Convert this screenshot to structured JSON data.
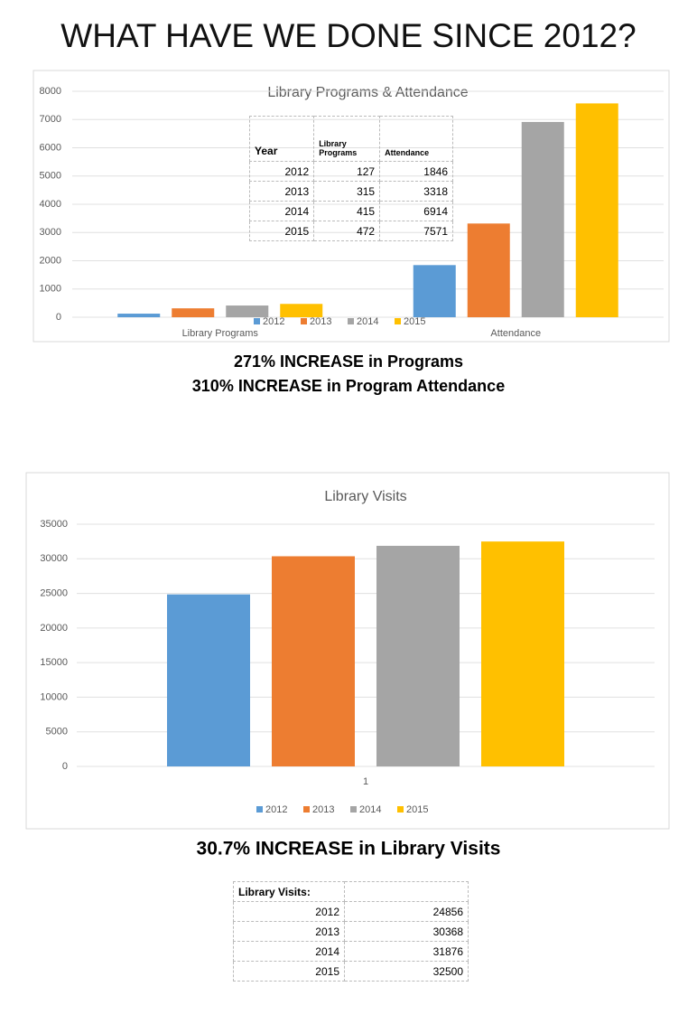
{
  "title": "WHAT HAVE WE DONE SINCE 2012?",
  "chart_data": [
    {
      "type": "bar",
      "title": "Library Programs & Attendance",
      "categories": [
        "Library Programs",
        "Attendance"
      ],
      "series": [
        {
          "name": "2012",
          "color": "#5b9bd5",
          "values": [
            127,
            1846
          ]
        },
        {
          "name": "2013",
          "color": "#ed7d31",
          "values": [
            315,
            3318
          ]
        },
        {
          "name": "2014",
          "color": "#a5a5a5",
          "values": [
            415,
            6914
          ]
        },
        {
          "name": "2015",
          "color": "#ffc000",
          "values": [
            472,
            7571
          ]
        }
      ],
      "ylim": [
        0,
        8000
      ],
      "yticks": [
        0,
        1000,
        2000,
        3000,
        4000,
        5000,
        6000,
        7000,
        8000
      ],
      "grid": true,
      "legend": "bottom"
    },
    {
      "type": "bar",
      "title": "Library Visits",
      "categories": [
        "1"
      ],
      "series": [
        {
          "name": "2012",
          "color": "#5b9bd5",
          "values": [
            24856
          ]
        },
        {
          "name": "2013",
          "color": "#ed7d31",
          "values": [
            30368
          ]
        },
        {
          "name": "2014",
          "color": "#a5a5a5",
          "values": [
            31876
          ]
        },
        {
          "name": "2015",
          "color": "#ffc000",
          "values": [
            32500
          ]
        }
      ],
      "ylim": [
        0,
        35000
      ],
      "yticks": [
        0,
        5000,
        10000,
        15000,
        20000,
        25000,
        30000,
        35000
      ],
      "grid": true,
      "legend": "bottom"
    }
  ],
  "programs_table": {
    "header": [
      "Year",
      "Library Programs",
      "Attendance"
    ],
    "rows": [
      [
        2012,
        127,
        1846
      ],
      [
        2013,
        315,
        3318
      ],
      [
        2014,
        415,
        6914
      ],
      [
        2015,
        472,
        7571
      ]
    ]
  },
  "captions": [
    "271% INCREASE in Programs",
    "310% INCREASE in Program Attendance",
    "30.7% INCREASE in Library Visits"
  ],
  "visits_table": {
    "header": "Library Visits:",
    "rows": [
      [
        2012,
        24856
      ],
      [
        2013,
        30368
      ],
      [
        2014,
        31876
      ],
      [
        2015,
        32500
      ]
    ]
  }
}
